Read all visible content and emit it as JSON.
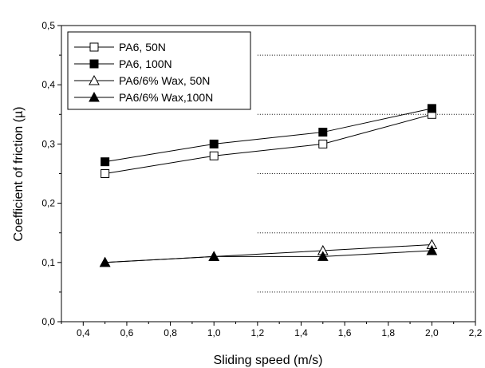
{
  "chart_data": {
    "type": "line",
    "title": "",
    "xlabel": "Sliding speed (m/s)",
    "ylabel": "Coefficient of friction (µ)",
    "xlim": [
      0.3,
      2.2
    ],
    "ylim": [
      0.0,
      0.5
    ],
    "x_ticks": [
      "0,4",
      "0,6",
      "0,8",
      "1,0",
      "1,2",
      "1,4",
      "1,6",
      "1,8",
      "2,0",
      "2,2"
    ],
    "y_ticks": [
      "0,0",
      "0,1",
      "0,2",
      "0,3",
      "0,4",
      "0,5"
    ],
    "grid": "dotted horizontal lines at 0.05, 0.15, 0.25, 0.35, 0.45 (right portion)",
    "legend_placement": "top-left",
    "x": [
      0.5,
      1.0,
      1.5,
      2.0
    ],
    "series": [
      {
        "name": "PA6, 50N",
        "marker": "square-open",
        "values": [
          0.25,
          0.28,
          0.3,
          0.35
        ]
      },
      {
        "name": "PA6, 100N",
        "marker": "square-filled",
        "values": [
          0.27,
          0.3,
          0.32,
          0.36
        ]
      },
      {
        "name": "PA6/6% Wax, 50N",
        "marker": "triangle-open",
        "values": [
          0.1,
          0.11,
          0.12,
          0.13
        ]
      },
      {
        "name": "PA6/6% Wax,100N",
        "marker": "triangle-filled",
        "values": [
          0.1,
          0.11,
          0.11,
          0.12
        ]
      }
    ]
  }
}
